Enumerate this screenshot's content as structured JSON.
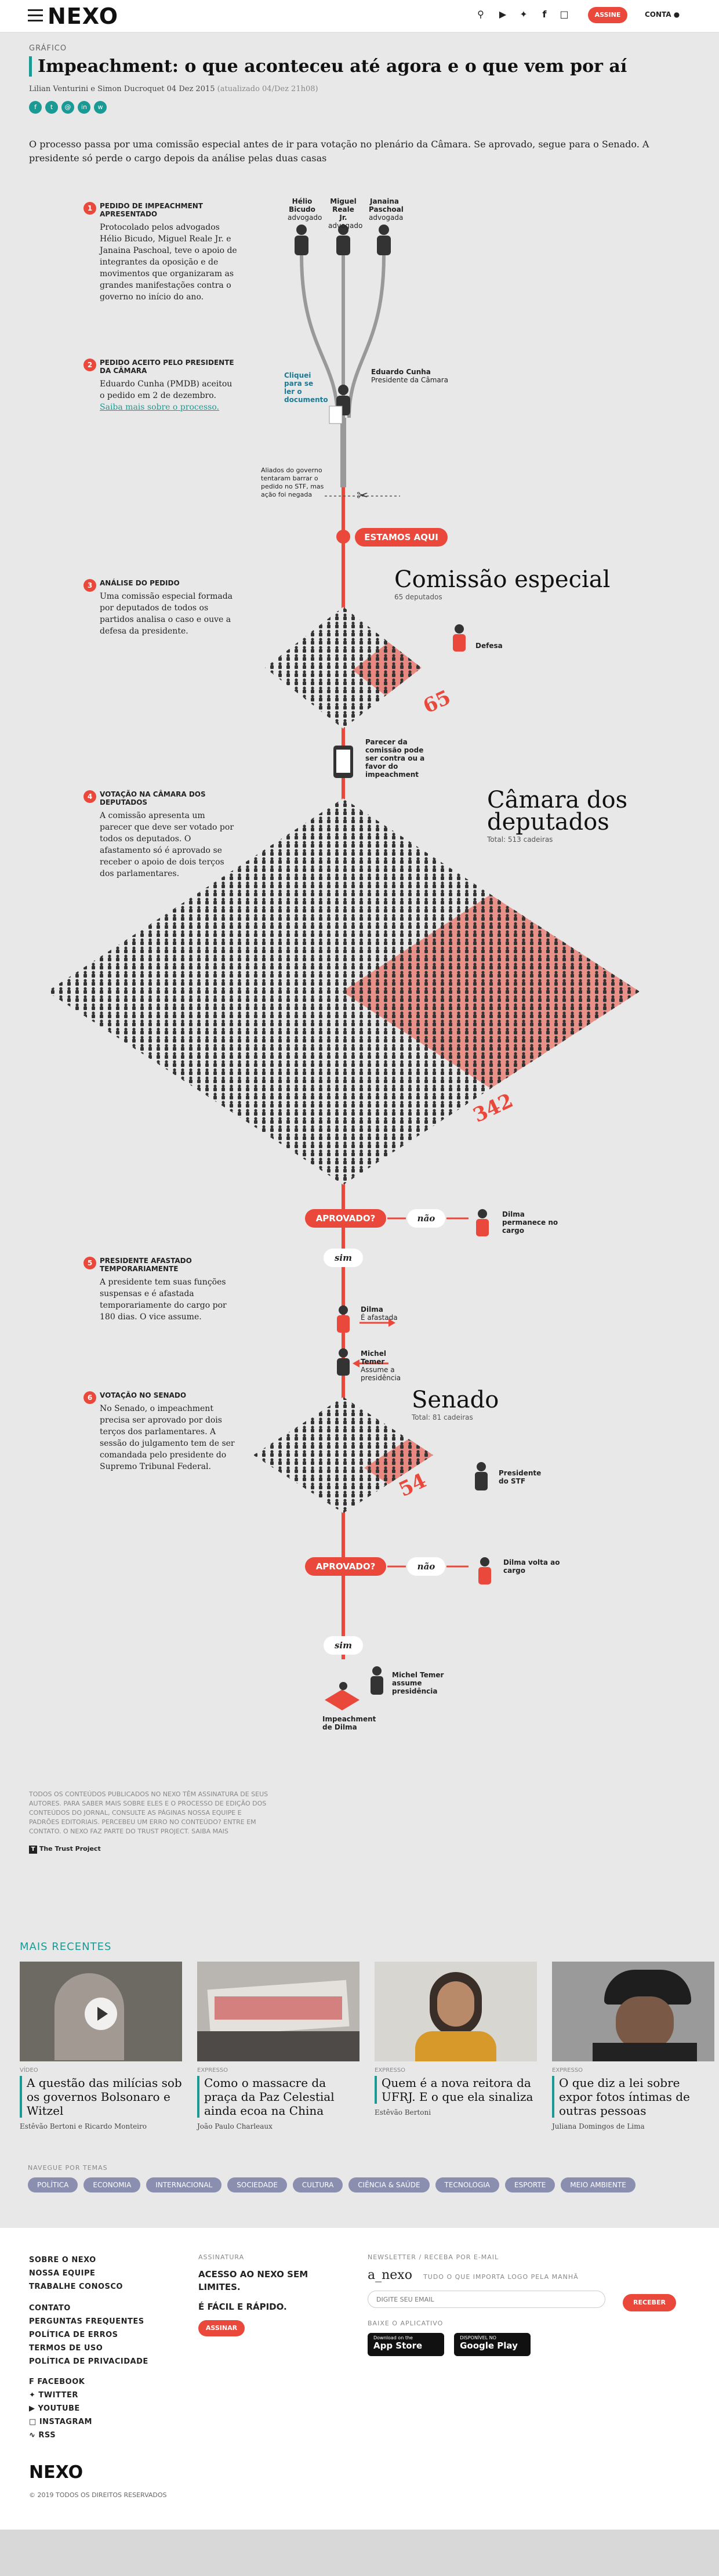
{
  "header": {
    "logo_main": "NEXO",
    "icons": [
      "search-icon",
      "youtube-icon",
      "twitter-icon",
      "facebook-icon",
      "instagram-icon"
    ],
    "subscribe": "ASSINE",
    "account": "CONTA"
  },
  "article": {
    "kicker": "GRÁFICO",
    "title": "Impeachment: o que aconteceu até agora e o que vem por aí",
    "byline": "Lilian Venturini e Simon Ducroquet 04 Dez 2015",
    "updated": "(atualizado 04/Dez 21h08)",
    "share_icons": [
      "f",
      "t",
      "@",
      "in",
      "w"
    ],
    "lead": "O processo passa por uma comissão especial antes de ir para votação no plenário da Câmara. Se aprovado, segue para o Senado. A presidente só perde o cargo depois da análise pelas duas casas"
  },
  "graphic": {
    "lawyers": [
      {
        "name": "Hélio Bicudo",
        "role": "advogado"
      },
      {
        "name": "Miguel Reale Jr.",
        "role": "advogado"
      },
      {
        "name": "Janaina Paschoal",
        "role": "advogada"
      }
    ],
    "steps": [
      {
        "num": "1",
        "title": "PEDIDO DE IMPEACHMENT APRESENTADO",
        "text": "Protocolado pelos advogados Hélio Bicudo, Miguel Reale Jr. e Janaina Paschoal, teve o apoio de integrantes da oposição e de movimentos que organizaram as grandes manifestações contra o governo no início do ano."
      },
      {
        "num": "2",
        "title": "PEDIDO ACEITO PELO PRESIDENTE DA CÂMARA",
        "text": "Eduardo Cunha (PMDB) aceitou o pedido em 2 de dezembro.",
        "link": "Saiba mais sobre o processo."
      },
      {
        "num": "3",
        "title": "ANÁLISE DO PEDIDO",
        "text": "Uma comissão especial formada por deputados de todos os partidos analisa o caso e ouve a defesa da presidente."
      },
      {
        "num": "4",
        "title": "VOTAÇÃO NA CÂMARA DOS DEPUTADOS",
        "text": "A comissão apresenta um parecer que deve ser votado por todos os deputados. O afastamento só é aprovado se receber o apoio de dois terços dos parlamentares."
      },
      {
        "num": "5",
        "title": "PRESIDENTE AFASTADO TEMPORARIAMENTE",
        "text": "A presidente tem suas funções suspensas e é afastada temporariamente do cargo por 180 dias. O vice assume."
      },
      {
        "num": "6",
        "title": "VOTAÇÃO NO SENADO",
        "text": "No Senado, o impeachment precisa ser aprovado por dois terços dos parlamentares. A sessão do julgamento tem de ser comandada pelo presidente do Supremo Tribunal Federal."
      }
    ],
    "cunha": {
      "name": "Eduardo Cunha",
      "role": "Presidente da Câmara"
    },
    "chaos_note": "Cliquei para se ler o documento",
    "allies_note": "Aliados do governo tentaram barrar o pedido no STF, mas ação foi negada",
    "estamos_aqui": "ESTAMOS AQUI",
    "comissao": {
      "name": "Comissão especial",
      "sub": "65 deputados",
      "needed": "65",
      "defense": "Defesa"
    },
    "parecer": "Parecer da comissão pode ser contra ou a favor do impeachment",
    "camara": {
      "name": "Câmara dos deputados",
      "sub": "Total: 513 cadeiras",
      "needed": "342"
    },
    "aprovado": "APROVADO?",
    "nao": "não",
    "sim": "sim",
    "dilma_stays": "Dilma permanece no cargo",
    "dilma_afastada": {
      "name": "Dilma",
      "role": "É afastada"
    },
    "temer_assume": {
      "name": "Michel Temer",
      "role": "Assume a presidência"
    },
    "senado": {
      "name": "Senado",
      "sub": "Total: 81 cadeiras",
      "needed": "54",
      "stf": "Presidente do STF"
    },
    "dilma_volta": "Dilma volta ao cargo",
    "temer_final": "Michel Temer assume presidência",
    "impeachment_final": "Impeachment de Dilma"
  },
  "footnote": "Todos os conteúdos publicados no Nexo têm assinatura de seus autores. Para saber mais sobre eles e o processo de edição dos conteúdos do jornal, consulte as páginas Nossa equipe e Padrões editoriais. Percebeu um erro no conteúdo? Entre em contato. O Nexo faz parte do Trust Project. Saiba mais",
  "trust": "The Trust Project",
  "recent": {
    "heading": "MAIS RECENTES",
    "cards": [
      {
        "tag": "VÍDEO",
        "title": "A questão das milícias sob os governos Bolsonaro e Witzel",
        "author": "Estêvão Bertoni e Ricardo Monteiro"
      },
      {
        "tag": "EXPRESSO",
        "title": "Como o massacre da praça da Paz Celestial ainda ecoa na China",
        "author": "João Paulo Charleaux"
      },
      {
        "tag": "EXPRESSO",
        "title": "Quem é a nova reitora da UFRJ. E o que ela sinaliza",
        "author": "Estêvão Bertoni"
      },
      {
        "tag": "EXPRESSO",
        "title": "O que diz a lei sobre expor fotos íntimas de outras pessoas",
        "author": "Juliana Domingos de Lima"
      }
    ]
  },
  "topics": {
    "heading": "NAVEGUE POR TEMAS",
    "items": [
      "POLÍTICA",
      "ECONOMIA",
      "INTERNACIONAL",
      "SOCIEDADE",
      "CULTURA",
      "CIÊNCIA & SAÚDE",
      "TECNOLOGIA",
      "ESPORTE",
      "MEIO AMBIENTE"
    ]
  },
  "footer": {
    "col1": [
      "SOBRE O NEXO",
      "NOSSA EQUIPE",
      "TRABALHE CONOSCO"
    ],
    "col1b": [
      "CONTATO",
      "PERGUNTAS FREQUENTES",
      "POLÍTICA DE ERROS",
      "TERMOS DE USO",
      "POLÍTICA DE PRIVACIDADE"
    ],
    "social": [
      "FACEBOOK",
      "TWITTER",
      "YOUTUBE",
      "INSTAGRAM",
      "RSS"
    ],
    "sub_label": "ASSINATURA",
    "sub_text1": "ACESSO AO NEXO SEM LIMITES.",
    "sub_text2": "É FÁCIL E RÁPIDO.",
    "sub_button": "ASSINAR",
    "news_label": "NEWSLETTER / RECEBA POR E-MAIL",
    "news_name": "a_nexo",
    "news_tag": "TUDO O QUE IMPORTA LOGO PELA MANHÃ",
    "email_placeholder": "DIGITE SEU EMAIL",
    "receive": "RECEBER",
    "app_label": "BAIXE O APLICATIVO",
    "appstore": "App Store",
    "appstore_small": "Download on the",
    "googleplay": "Google Play",
    "googleplay_small": "DISPONÍVEL NO",
    "copyright": "© 2019 TODOS OS DIREITOS RESERVADOS",
    "logo": "NEXO"
  }
}
